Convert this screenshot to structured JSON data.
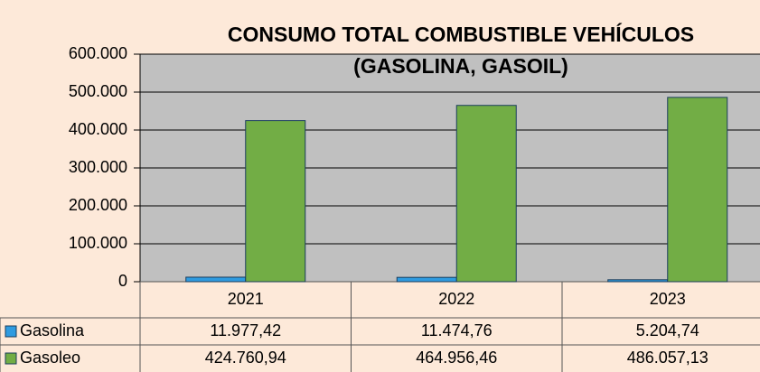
{
  "chart_data": {
    "type": "bar",
    "title": [
      "CONSUMO TOTAL COMBUSTIBLE VEHÍCULOS",
      "(GASOLINA, GASOIL)"
    ],
    "categories": [
      "2021",
      "2022",
      "2023"
    ],
    "series": [
      {
        "name": "Gasolina",
        "color": "#2f9be0",
        "values": [
          11977.42,
          11474.76,
          5204.74
        ],
        "value_labels": [
          "11.977,42",
          "11.474,76",
          "5.204,74"
        ]
      },
      {
        "name": "Gasoleo",
        "color": "#72ad45",
        "values": [
          424760.94,
          464956.46,
          486057.13
        ],
        "value_labels": [
          "424.760,94",
          "464.956,46",
          "486.057,13"
        ]
      }
    ],
    "ylim": [
      0,
      600000
    ],
    "yticks": [
      0,
      {
        "value": 100000,
        "label": "100.000"
      },
      {
        "value": 200000,
        "label": "200.000"
      },
      {
        "value": 300000,
        "label": "300.000"
      },
      {
        "value": 400000,
        "label": "400.000"
      },
      {
        "value": 500000,
        "label": "500.000"
      },
      {
        "value": 600000,
        "label": "600.000"
      }
    ],
    "grid": true
  }
}
